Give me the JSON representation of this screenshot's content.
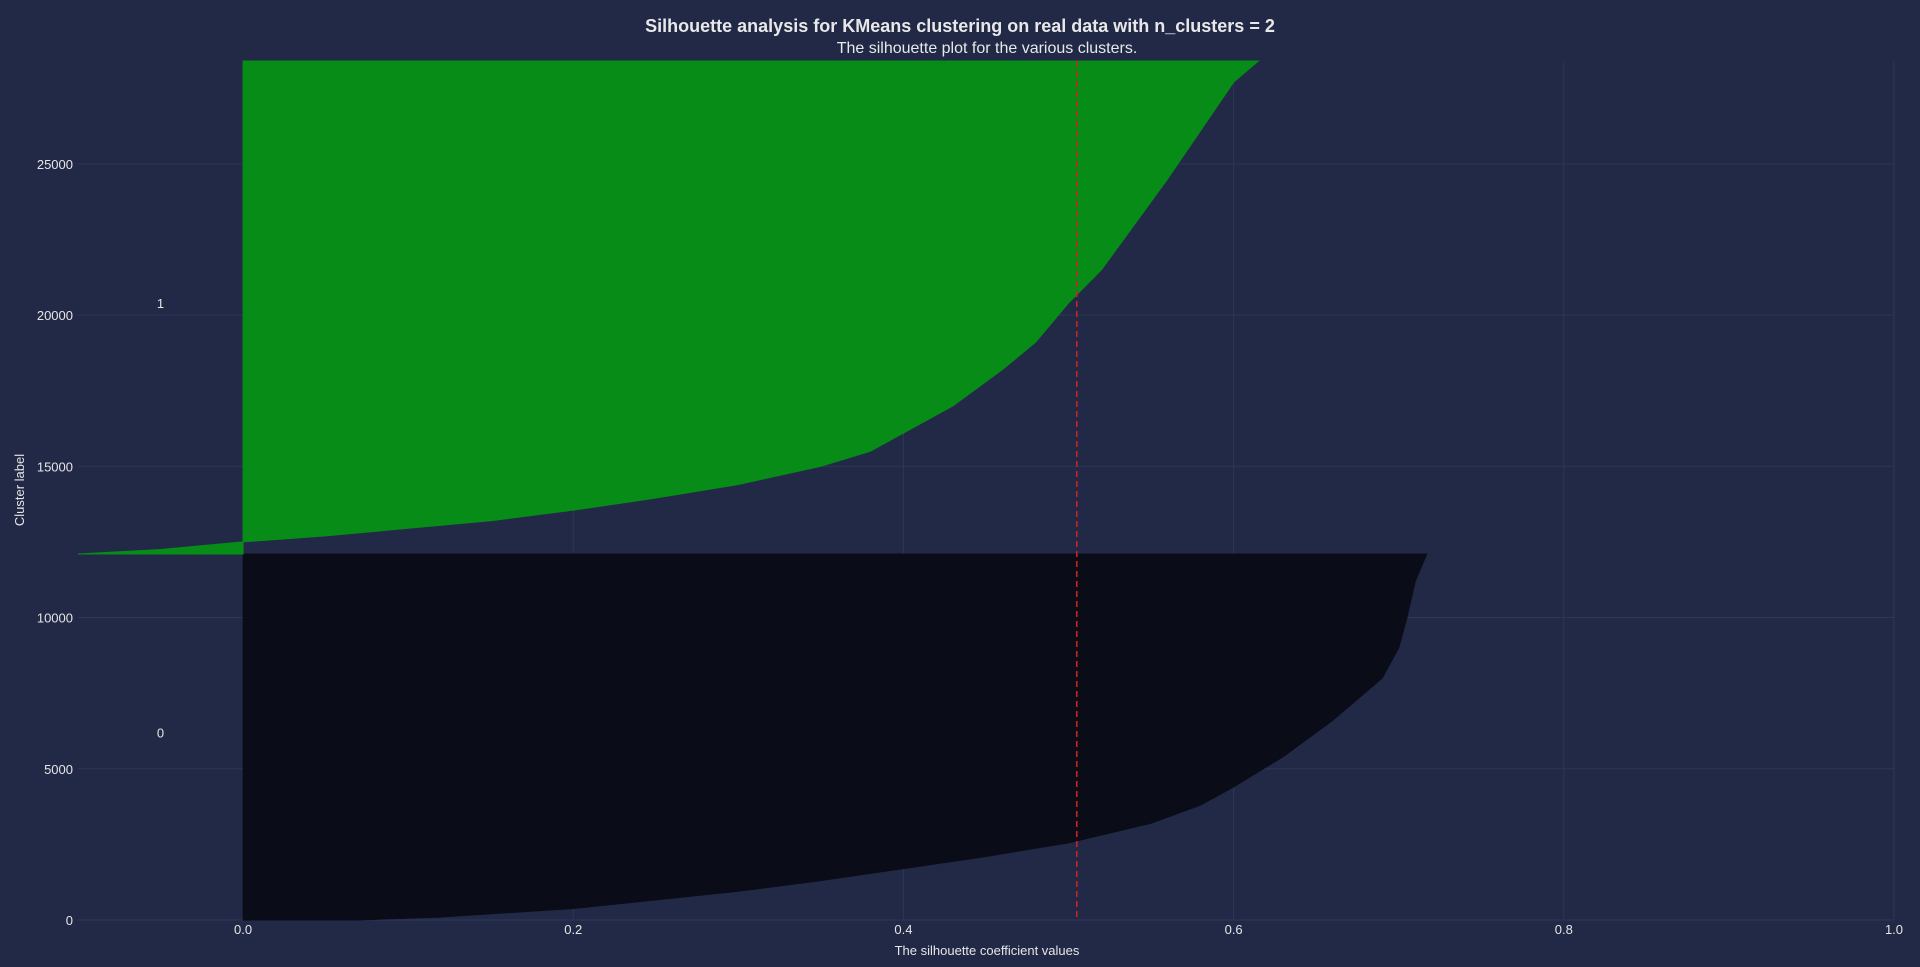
{
  "chart_data": {
    "type": "area",
    "title": "Silhouette analysis for KMeans clustering on real data with n_clusters = 2",
    "subtitle": "The silhouette plot for the various clusters.",
    "xlabel": "The silhouette coefficient values",
    "ylabel": "Cluster label",
    "xlim": [
      -0.1,
      1.0
    ],
    "ylim": [
      0,
      28400
    ],
    "x_ticks": [
      "0.0",
      "0.2",
      "0.4",
      "0.6",
      "0.8",
      "1.0"
    ],
    "x_tick_values": [
      0.0,
      0.2,
      0.4,
      0.6,
      0.8,
      1.0
    ],
    "y_ticks": [
      "0",
      "5000",
      "10000",
      "15000",
      "20000",
      "25000"
    ],
    "y_tick_values": [
      0,
      5000,
      10000,
      15000,
      20000,
      25000
    ],
    "grid": true,
    "average_silhouette_score": 0.505,
    "colors": {
      "background": "#212946",
      "grid": "#2e3658",
      "average_line": "#d01f1f"
    },
    "clusters": [
      {
        "label": "0",
        "color": "#0a0d18",
        "label_position": {
          "x": -0.05,
          "y": 6200
        },
        "y_range": [
          0,
          12100
        ],
        "profile": [
          [
            0.0,
            0
          ],
          [
            0.07,
            0
          ],
          [
            0.12,
            100
          ],
          [
            0.2,
            380
          ],
          [
            0.3,
            950
          ],
          [
            0.35,
            1300
          ],
          [
            0.4,
            1700
          ],
          [
            0.45,
            2100
          ],
          [
            0.5,
            2550
          ],
          [
            0.55,
            3200
          ],
          [
            0.58,
            3800
          ],
          [
            0.6,
            4400
          ],
          [
            0.63,
            5400
          ],
          [
            0.66,
            6600
          ],
          [
            0.69,
            8000
          ],
          [
            0.7,
            9000
          ],
          [
            0.705,
            10000
          ],
          [
            0.71,
            11200
          ],
          [
            0.717,
            12100
          ]
        ]
      },
      {
        "label": "1",
        "color": "#088c18",
        "label_position": {
          "x": -0.05,
          "y": 20400
        },
        "y_range": [
          12100,
          28400
        ],
        "profile": [
          [
            -0.1,
            12100
          ],
          [
            -0.05,
            12250
          ],
          [
            0.0,
            12500
          ],
          [
            0.05,
            12700
          ],
          [
            0.1,
            12950
          ],
          [
            0.15,
            13200
          ],
          [
            0.2,
            13550
          ],
          [
            0.25,
            13950
          ],
          [
            0.3,
            14400
          ],
          [
            0.35,
            15000
          ],
          [
            0.38,
            15500
          ],
          [
            0.4,
            16100
          ],
          [
            0.43,
            17000
          ],
          [
            0.46,
            18200
          ],
          [
            0.48,
            19100
          ],
          [
            0.5,
            20400
          ],
          [
            0.52,
            21500
          ],
          [
            0.54,
            23000
          ],
          [
            0.56,
            24500
          ],
          [
            0.58,
            26100
          ],
          [
            0.6,
            27700
          ],
          [
            0.615,
            28400
          ]
        ]
      }
    ]
  }
}
